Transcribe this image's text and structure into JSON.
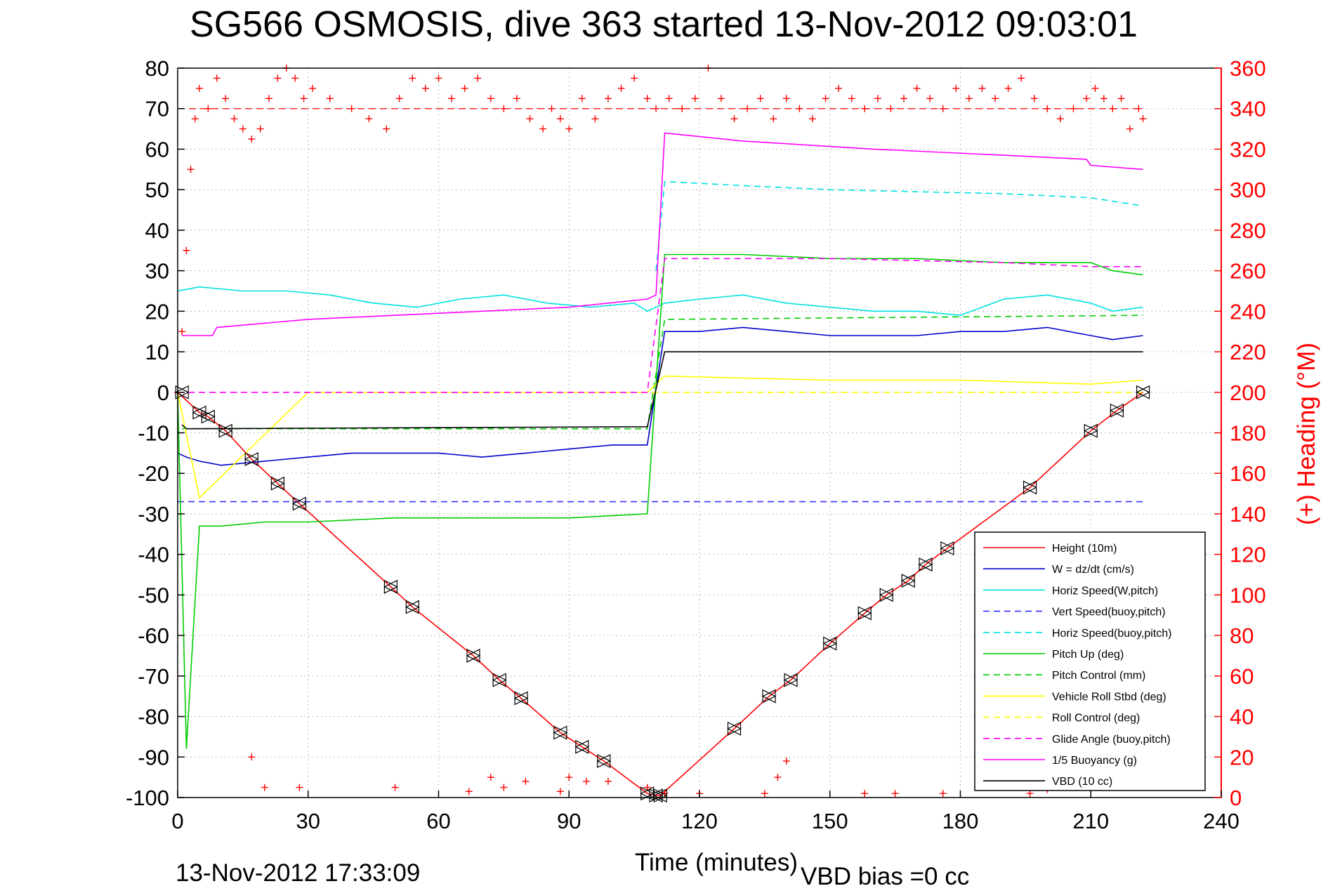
{
  "chart_data": {
    "type": "line",
    "title": "SG566 OSMOSIS, dive 363 started 13-Nov-2012 09:03:01",
    "xlabel": "Time (minutes)",
    "ylabel_right": "(+) Heading (°M)",
    "footer_left": "13-Nov-2012 17:33:09",
    "footer_right": "VBD bias =0 cc",
    "xlim": [
      0,
      240
    ],
    "ylim": [
      -100,
      80
    ],
    "ylim_right": [
      0,
      360
    ],
    "x_ticks": [
      "0",
      "30",
      "60",
      "90",
      "120",
      "150",
      "180",
      "210",
      "240"
    ],
    "y_ticks": [
      "80",
      "70",
      "60",
      "50",
      "40",
      "30",
      "20",
      "10",
      "0",
      "-10",
      "-20",
      "-30",
      "-40",
      "-50",
      "-60",
      "-70",
      "-80",
      "-90",
      "-100"
    ],
    "y_right_ticks": [
      "360",
      "340",
      "320",
      "300",
      "280",
      "260",
      "240",
      "220",
      "200",
      "180",
      "160",
      "140",
      "120",
      "100",
      "80",
      "60",
      "40",
      "20",
      "0"
    ],
    "grid": true,
    "legend_position": "bottom-right",
    "colors": {
      "axis": "#000000",
      "right_axis": "#ff0000",
      "grid": "#bbbbbb"
    },
    "series": [
      {
        "name": "Height (10m)",
        "color": "#ff0000",
        "style": "solid",
        "x": [
          0,
          1,
          5,
          7,
          11,
          17,
          23,
          28,
          49,
          54,
          68,
          74,
          79,
          88,
          93,
          98,
          108,
          110,
          111,
          128,
          136,
          141,
          150,
          158,
          163,
          168,
          172,
          177,
          196,
          210,
          216,
          222
        ],
        "y": [
          0,
          -1,
          -5,
          -6,
          -9.5,
          -16.5,
          -22.5,
          -27.5,
          -48,
          -53,
          -65,
          -71,
          -75.5,
          -84,
          -87.5,
          -91,
          -99,
          -99.5,
          -99.5,
          -83,
          -75,
          -71,
          -62,
          -54.5,
          -50,
          -46.5,
          -42.5,
          -38.5,
          -23.5,
          -9.5,
          -4.5,
          0
        ]
      },
      {
        "name": "W = dz/dt (cm/s)",
        "color": "#0000cc",
        "style": "solid",
        "x": [
          0,
          2,
          5,
          10,
          20,
          30,
          40,
          50,
          60,
          70,
          80,
          90,
          100,
          108,
          112,
          120,
          130,
          140,
          150,
          160,
          170,
          180,
          190,
          200,
          210,
          215,
          222
        ],
        "y": [
          -15,
          -16,
          -17,
          -18,
          -17,
          -16,
          -15,
          -15,
          -15,
          -16,
          -15,
          -14,
          -13,
          -13,
          15,
          15,
          16,
          15,
          14,
          14,
          14,
          15,
          15,
          16,
          14,
          13,
          14
        ]
      },
      {
        "name": "Horiz Speed(W,pitch)",
        "color": "#00e0e0",
        "style": "solid",
        "x": [
          0,
          5,
          15,
          25,
          35,
          45,
          55,
          65,
          75,
          85,
          95,
          105,
          108,
          112,
          120,
          130,
          140,
          150,
          160,
          170,
          180,
          190,
          200,
          210,
          215,
          222
        ],
        "y": [
          25,
          26,
          25,
          25,
          24,
          22,
          21,
          23,
          24,
          22,
          21,
          22,
          20,
          22,
          23,
          24,
          22,
          21,
          20,
          20,
          19,
          23,
          24,
          22,
          20,
          21
        ]
      },
      {
        "name": "Vert Speed(buoy,pitch)",
        "color": "#3333ff",
        "style": "dashed",
        "x": [
          0,
          222
        ],
        "y": [
          -27,
          -27
        ]
      },
      {
        "name": "Horiz Speed(buoy,pitch)",
        "color": "#00e0e0",
        "style": "dashed",
        "x": [
          110,
          112,
          130,
          150,
          170,
          190,
          210,
          222
        ],
        "y": [
          30,
          52,
          51,
          50,
          49.5,
          49,
          48,
          46
        ]
      },
      {
        "name": "Pitch Up (deg)",
        "color": "#00cc00",
        "style": "solid",
        "x": [
          0,
          2,
          5,
          10,
          20,
          30,
          50,
          70,
          90,
          108,
          112,
          130,
          150,
          170,
          190,
          210,
          215,
          222
        ],
        "y": [
          0,
          -88,
          -33,
          -33,
          -32,
          -32,
          -31,
          -31,
          -31,
          -30,
          34,
          34,
          33,
          33,
          32,
          32,
          30,
          29
        ]
      },
      {
        "name": "Pitch Control (mm)",
        "color": "#00cc00",
        "style": "dashed",
        "x": [
          1,
          5,
          108,
          112,
          222
        ],
        "y": [
          -9,
          -9,
          -9,
          18,
          19
        ]
      },
      {
        "name": "Vehicle Roll Stbd (deg)",
        "color": "#ffff00",
        "style": "solid",
        "x": [
          0,
          5,
          30,
          60,
          90,
          108,
          112,
          150,
          180,
          210,
          222
        ],
        "y": [
          0,
          -26,
          0,
          0,
          0,
          0,
          4,
          3,
          3,
          2,
          3
        ]
      },
      {
        "name": "Roll Control (deg)",
        "color": "#ffff00",
        "style": "dashed",
        "x": [
          0,
          222
        ],
        "y": [
          0,
          0
        ]
      },
      {
        "name": "Glide Angle (buoy,pitch)",
        "color": "#ff00ff",
        "style": "dashed",
        "x": [
          0,
          108,
          112,
          150,
          190,
          210,
          222
        ],
        "y": [
          0,
          0,
          33,
          33,
          32,
          31,
          31
        ]
      },
      {
        "name": "1/5 Buoyancy (g)",
        "color": "#ff00ff",
        "style": "solid",
        "x": [
          1,
          8,
          9,
          30,
          60,
          90,
          108,
          110,
          112,
          130,
          160,
          190,
          209,
          210,
          222
        ],
        "y": [
          14,
          14,
          16,
          18,
          19.5,
          21,
          23,
          24,
          64,
          62,
          60,
          58.5,
          57.5,
          56,
          55
        ]
      },
      {
        "name": "VBD (10 cc)",
        "color": "#000000",
        "style": "solid",
        "x": [
          1,
          2,
          108,
          112,
          222
        ],
        "y": [
          -8,
          -9,
          -8.5,
          10,
          10
        ]
      }
    ],
    "heading": {
      "color": "#ff0000",
      "marker": "+",
      "target_line": 340,
      "x": [
        0,
        1,
        2,
        3,
        4,
        5,
        7,
        9,
        11,
        13,
        15,
        17,
        19,
        21,
        23,
        25,
        27,
        29,
        31,
        35,
        40,
        44,
        48,
        51,
        54,
        57,
        60,
        63,
        66,
        69,
        72,
        75,
        78,
        81,
        84,
        86,
        88,
        90,
        93,
        96,
        99,
        102,
        105,
        108,
        110,
        113,
        116,
        119,
        122,
        125,
        128,
        131,
        134,
        137,
        140,
        143,
        146,
        149,
        152,
        155,
        158,
        161,
        164,
        167,
        170,
        173,
        176,
        179,
        182,
        185,
        188,
        191,
        194,
        197,
        200,
        203,
        206,
        209,
        211,
        213,
        215,
        217,
        219,
        221,
        222
      ],
      "y": [
        200,
        230,
        270,
        310,
        335,
        350,
        340,
        355,
        345,
        335,
        330,
        325,
        330,
        345,
        355,
        360,
        355,
        345,
        350,
        345,
        340,
        335,
        330,
        345,
        355,
        350,
        355,
        345,
        350,
        355,
        345,
        340,
        345,
        335,
        330,
        340,
        335,
        330,
        345,
        335,
        345,
        350,
        355,
        345,
        340,
        345,
        340,
        345,
        360,
        345,
        335,
        340,
        345,
        335,
        345,
        340,
        335,
        345,
        350,
        345,
        340,
        345,
        340,
        345,
        350,
        345,
        340,
        350,
        345,
        350,
        345,
        350,
        355,
        345,
        340,
        335,
        340,
        345,
        350,
        345,
        340,
        345,
        330,
        340,
        335
      ]
    },
    "heading_outliers": {
      "x": [
        17,
        20,
        28,
        50,
        67,
        72,
        75,
        80,
        88,
        90,
        94,
        99,
        108,
        112,
        120,
        135,
        138,
        140,
        158,
        165,
        176,
        196,
        200
      ],
      "y": [
        20,
        5,
        5,
        5,
        3,
        10,
        5,
        8,
        3,
        10,
        8,
        8,
        5,
        2,
        2,
        2,
        10,
        18,
        2,
        2,
        2,
        2,
        4
      ]
    },
    "dive_markers": {
      "x": [
        1,
        5,
        7,
        11,
        17,
        23,
        28,
        49,
        54,
        68,
        74,
        79,
        88,
        93,
        98,
        108,
        110,
        111,
        128,
        136,
        141,
        150,
        158,
        163,
        168,
        172,
        177,
        196,
        210,
        216,
        222
      ],
      "y": [
        0,
        -5,
        -6,
        -9.5,
        -16.5,
        -22.5,
        -27.5,
        -48,
        -53,
        -65,
        -71,
        -75.5,
        -84,
        -87.5,
        -91,
        -99,
        -99.5,
        -99.5,
        -83,
        -75,
        -71,
        -62,
        -54.5,
        -50,
        -46.5,
        -42.5,
        -38.5,
        -23.5,
        -9.5,
        -4.5,
        0
      ]
    }
  }
}
